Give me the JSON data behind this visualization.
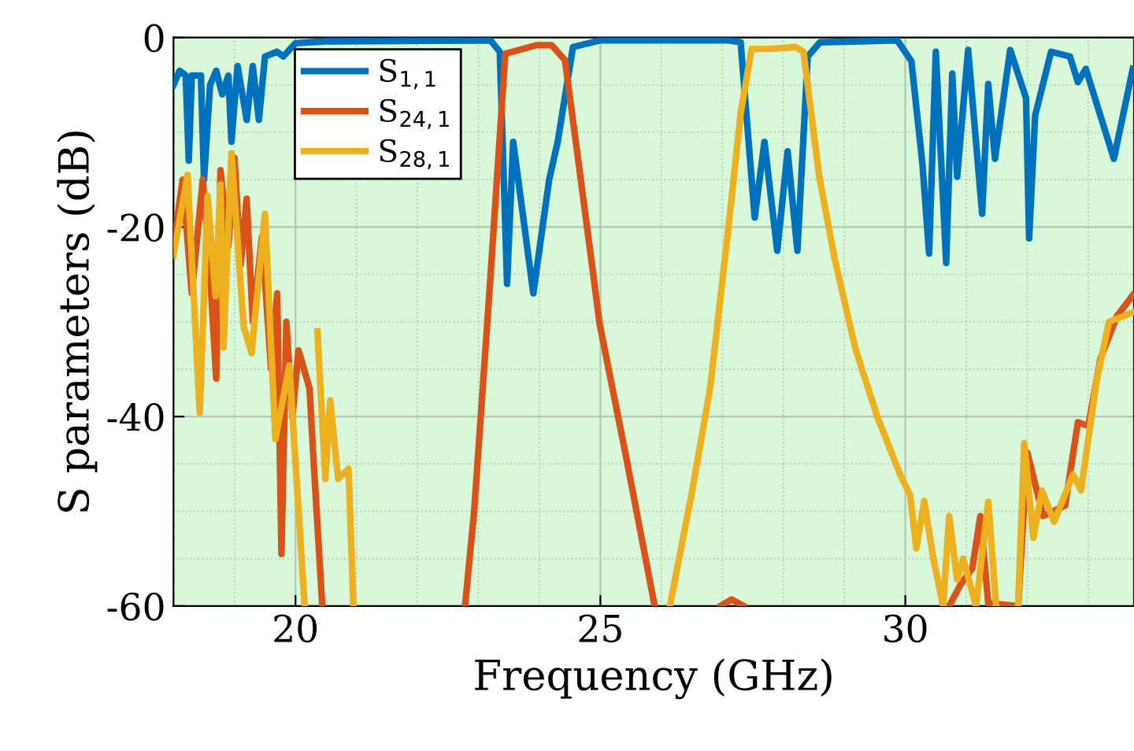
{
  "chart_data": {
    "type": "line",
    "xlabel": "Frequency (GHz)",
    "ylabel": "S parameters (dB)",
    "xlim": [
      18,
      33.75
    ],
    "ylim": [
      -60,
      0
    ],
    "xticks": [
      20,
      25,
      30
    ],
    "yticks": [
      0,
      -20,
      -40,
      -60
    ],
    "grid": true,
    "legend": "top left",
    "line_style": "solid",
    "marker": "none",
    "bands": [
      {
        "axis": "x",
        "from": 18,
        "to": 33.75,
        "color": "#d9f7d9"
      }
    ],
    "series": [
      {
        "name": "S$_{1,1}$",
        "color": "#0072bd",
        "x": [
          18.0,
          18.1,
          18.2,
          18.25,
          18.3,
          18.45,
          18.5,
          18.6,
          18.7,
          18.8,
          18.9,
          18.95,
          19.05,
          19.2,
          19.3,
          19.4,
          19.5,
          19.7,
          19.8,
          20.0,
          20.5,
          23.2,
          23.35,
          23.47,
          23.57,
          23.9,
          24.16,
          24.3,
          24.55,
          25.0,
          27.1,
          27.3,
          27.53,
          27.69,
          27.9,
          28.07,
          28.23,
          28.4,
          28.6,
          29.87,
          30.1,
          30.28,
          30.39,
          30.5,
          30.67,
          30.77,
          30.85,
          31.03,
          31.26,
          31.36,
          31.47,
          31.72,
          31.98,
          32.03,
          32.13,
          32.39,
          32.7,
          32.83,
          32.96,
          33.42,
          33.73
        ],
        "values": [
          -5,
          -3.5,
          -4,
          -13,
          -4,
          -4,
          -15,
          -5,
          -3.5,
          -6,
          -4,
          -11,
          -3,
          -8.7,
          -3,
          -8.7,
          -2,
          -1.5,
          -2,
          -0.6,
          -0.4,
          -0.3,
          -1.5,
          -26,
          -11,
          -27,
          -15,
          -11,
          -1,
          -0.3,
          -0.3,
          -0.5,
          -19,
          -11,
          -22.5,
          -12,
          -22.5,
          -2,
          -0.5,
          -0.3,
          -2.5,
          -13.3,
          -22.8,
          -1.5,
          -23.8,
          -3.8,
          -14.7,
          -1.3,
          -18.6,
          -4.9,
          -12.8,
          -1.3,
          -6.4,
          -21.2,
          -8.2,
          -1.5,
          -2,
          -4.7,
          -3.3,
          -12.8,
          -3.3
        ]
      },
      {
        "name": "S$_{24,1}$",
        "color": "#d95319",
        "x": [
          18.0,
          18.15,
          18.3,
          18.48,
          18.6,
          18.7,
          18.77,
          18.9,
          19.0,
          19.1,
          19.2,
          19.3,
          19.45,
          19.6,
          19.7,
          19.77,
          19.85,
          19.95,
          20.05,
          20.23,
          20.3,
          20.44,
          20.6,
          22.78,
          22.93,
          23.2,
          23.44,
          23.96,
          24.2,
          24.42,
          24.73,
          24.99,
          25.42,
          25.89,
          26.0,
          26.97,
          27.15,
          27.35,
          27.5,
          30.72,
          30.9,
          31.1,
          31.23,
          31.36,
          31.85,
          32.0,
          32.26,
          32.62,
          32.83,
          33.0,
          33.2,
          33.47,
          33.73
        ],
        "values": [
          -22,
          -15,
          -27,
          -15,
          -25,
          -36,
          -14,
          -22,
          -12.7,
          -24,
          -17,
          -30,
          -21,
          -35,
          -27,
          -54.5,
          -30,
          -40,
          -33,
          -37,
          -45,
          -60,
          null,
          -60,
          -50,
          -25,
          -1.7,
          -0.8,
          -0.8,
          -2.4,
          -17.5,
          -30.3,
          -44.2,
          -60,
          null,
          -60,
          -59.3,
          -60,
          null,
          -60,
          -57.8,
          -56,
          -50.5,
          -59.7,
          -60,
          -43.8,
          -50.5,
          -49.4,
          -40.6,
          -41,
          -33.9,
          -29.4,
          -27.2
        ]
      },
      {
        "name": "S$_{28,1}$",
        "color": "#edb120",
        "x": [
          18.0,
          18.23,
          18.43,
          18.56,
          18.69,
          18.77,
          18.82,
          18.95,
          19.15,
          19.28,
          19.5,
          19.67,
          19.9,
          20.15,
          20.25,
          20.36,
          20.49,
          20.57,
          20.7,
          20.87,
          20.95,
          21.0,
          26.14,
          26.5,
          26.8,
          27.1,
          27.3,
          27.48,
          27.8,
          28.2,
          28.33,
          28.59,
          28.84,
          29.18,
          29.54,
          29.92,
          30.08,
          30.18,
          30.31,
          30.46,
          30.62,
          30.72,
          30.85,
          30.95,
          31.16,
          31.36,
          31.49,
          31.6,
          31.85,
          31.95,
          32.1,
          32.24,
          32.44,
          32.75,
          32.88,
          33.14,
          33.34,
          33.73
        ],
        "values": [
          -23,
          -14.5,
          -39.6,
          -16.7,
          -27.3,
          -15.5,
          -32.7,
          -12.2,
          -30.5,
          -33.3,
          -18.6,
          -42.4,
          -34.6,
          -60,
          null,
          -31,
          -46.6,
          -38.3,
          -46.6,
          -45.5,
          -60,
          null,
          -60,
          -48,
          -37,
          -20,
          -8,
          -1.2,
          -1.2,
          -1,
          -1.5,
          -14.7,
          -23.3,
          -32.8,
          -40,
          -46.2,
          -48.3,
          -53.9,
          -48.9,
          -55,
          -60,
          -50.5,
          -57.2,
          -55,
          -60,
          -49,
          -60,
          null,
          -60,
          -42.8,
          -52.8,
          -47.8,
          -51.1,
          -46.1,
          -47.8,
          -36.1,
          -30,
          -29
        ]
      }
    ]
  }
}
